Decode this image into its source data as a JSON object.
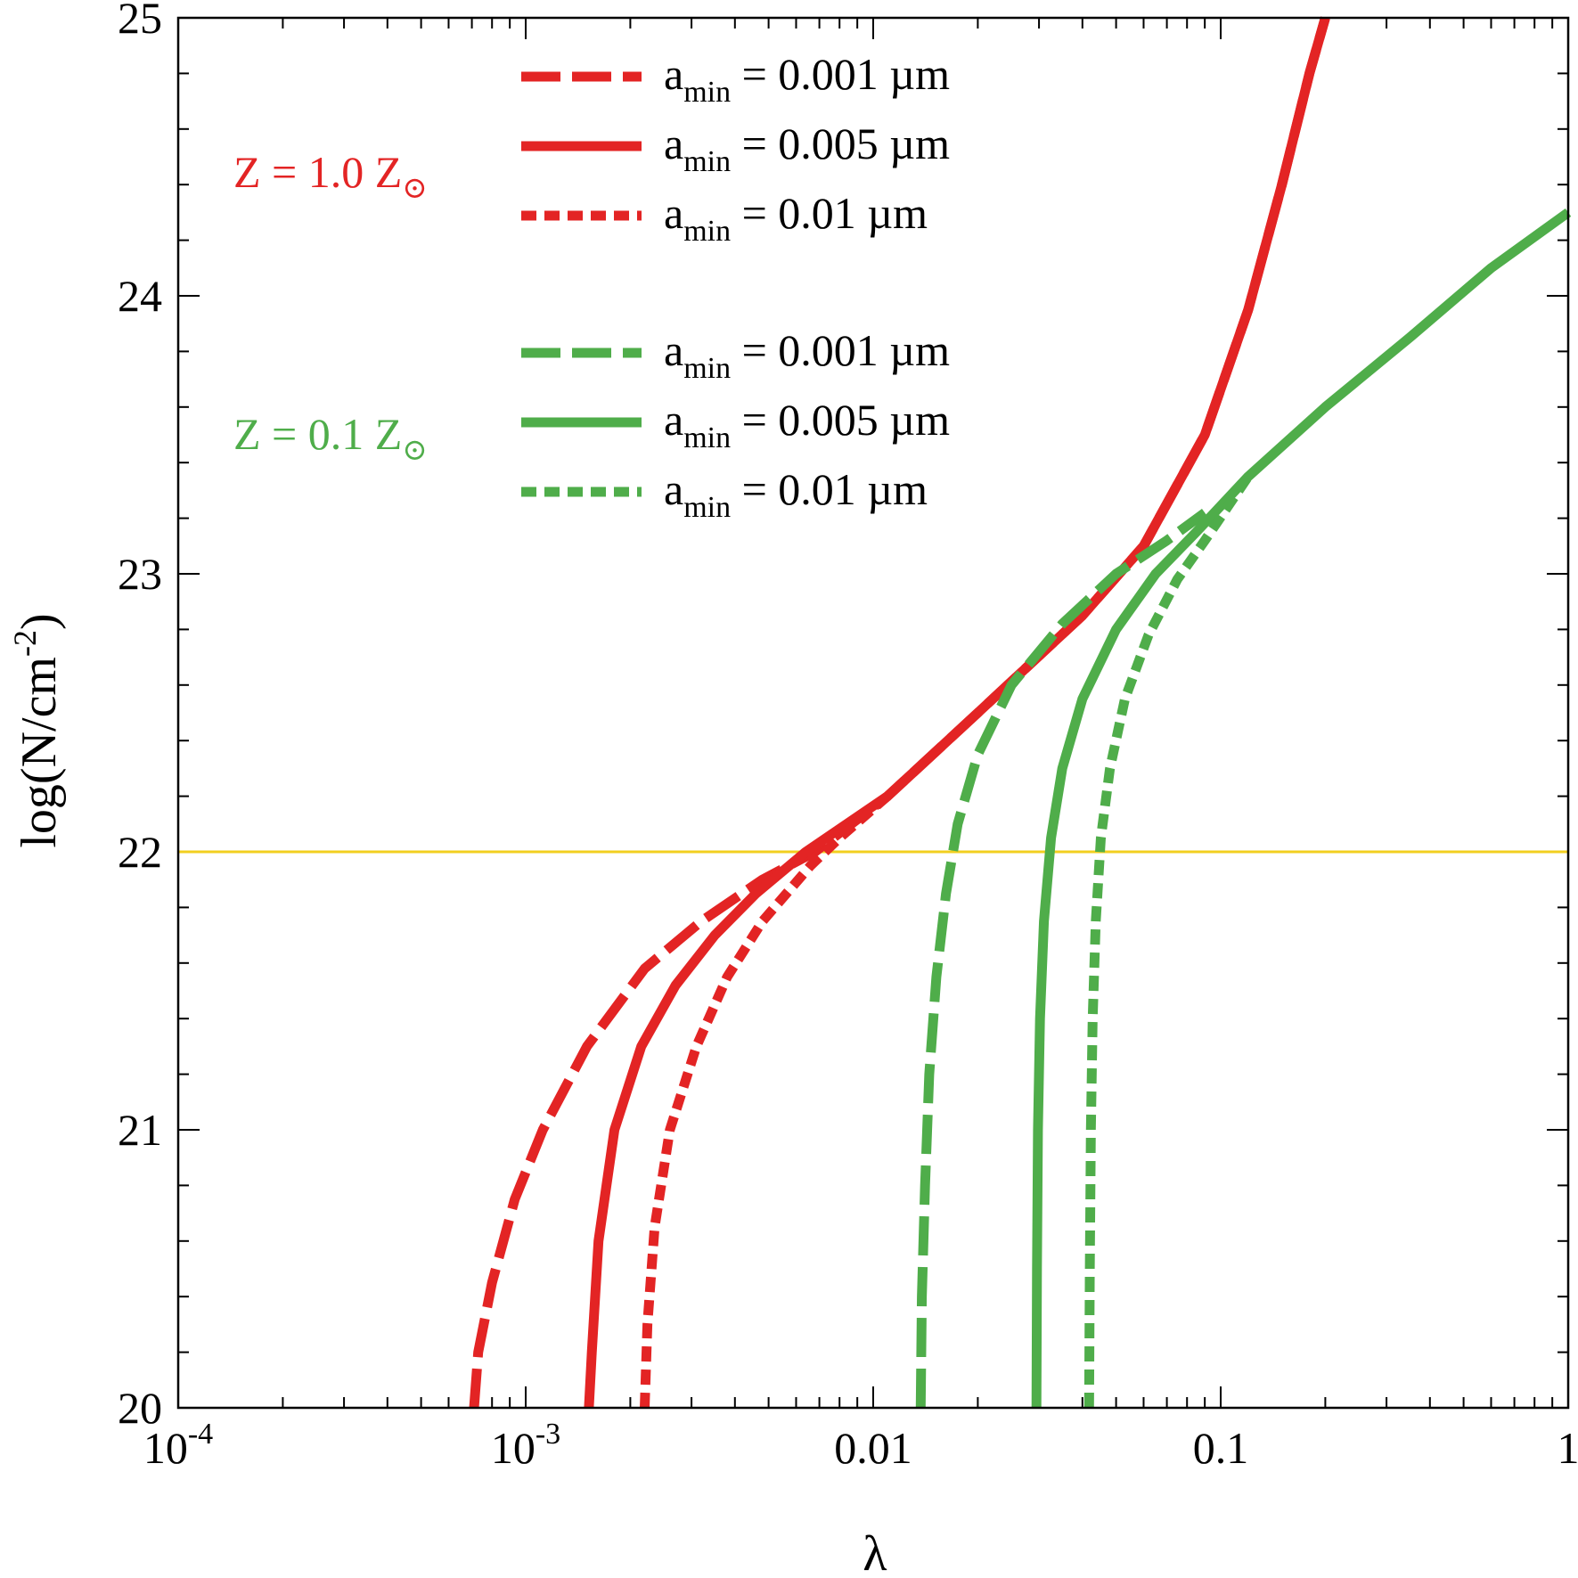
{
  "chart_data": {
    "type": "line",
    "xscale": "log",
    "xlim": [
      0.0001,
      1
    ],
    "ylim": [
      20,
      25
    ],
    "xlabel": "λ",
    "ylabel_parts": {
      "main": "log(N/cm",
      "sup": "-2",
      "close": ")"
    },
    "x_tick_labels": [
      {
        "value": 0.0001,
        "base": "10",
        "exp": "-4"
      },
      {
        "value": 0.001,
        "base": "10",
        "exp": "-3"
      },
      {
        "value": 0.01,
        "text": "0.01"
      },
      {
        "value": 0.1,
        "text": "0.1"
      },
      {
        "value": 1,
        "text": "1"
      }
    ],
    "y_tick_labels": [
      {
        "value": 20,
        "text": "20"
      },
      {
        "value": 21,
        "text": "21"
      },
      {
        "value": 22,
        "text": "22"
      },
      {
        "value": 23,
        "text": "23"
      },
      {
        "value": 24,
        "text": "24"
      },
      {
        "value": 25,
        "text": "25"
      }
    ],
    "reference_line": {
      "y": 22,
      "color": "#f2cf1f"
    },
    "groups": [
      {
        "label": "Z = 1.0 Z",
        "label_sub": "⊙",
        "color": "#e32424"
      },
      {
        "label": "Z = 0.1 Z",
        "label_sub": "⊙",
        "color": "#4fad4a"
      }
    ],
    "series": [
      {
        "legend_label": "a",
        "legend_sub": "min",
        "legend_value": " = 0.001 µm",
        "group": 0,
        "style": "dashed",
        "color": "#e32424",
        "points": [
          [
            0.00071,
            20.0
          ],
          [
            0.00073,
            20.2
          ],
          [
            0.0008,
            20.45
          ],
          [
            0.00093,
            20.75
          ],
          [
            0.00112,
            21.0
          ],
          [
            0.0015,
            21.3
          ],
          [
            0.0022,
            21.58
          ],
          [
            0.0032,
            21.75
          ],
          [
            0.0048,
            21.9
          ],
          [
            0.0068,
            22.0
          ],
          [
            0.011,
            22.2
          ],
          [
            0.02,
            22.5
          ],
          [
            0.04,
            22.85
          ],
          [
            0.06,
            23.1
          ],
          [
            0.09,
            23.5
          ],
          [
            0.12,
            23.95
          ],
          [
            0.15,
            24.4
          ],
          [
            0.18,
            24.8
          ],
          [
            0.2,
            25.0
          ]
        ]
      },
      {
        "legend_label": "a",
        "legend_sub": "min",
        "legend_value": " = 0.005 µm",
        "group": 0,
        "style": "solid",
        "color": "#e32424",
        "points": [
          [
            0.00152,
            20.0
          ],
          [
            0.00155,
            20.2
          ],
          [
            0.00162,
            20.6
          ],
          [
            0.0018,
            21.0
          ],
          [
            0.00215,
            21.3
          ],
          [
            0.0027,
            21.52
          ],
          [
            0.0035,
            21.7
          ],
          [
            0.0046,
            21.85
          ],
          [
            0.0064,
            22.0
          ],
          [
            0.011,
            22.2
          ],
          [
            0.02,
            22.5
          ],
          [
            0.04,
            22.85
          ],
          [
            0.06,
            23.1
          ],
          [
            0.09,
            23.5
          ],
          [
            0.12,
            23.95
          ],
          [
            0.15,
            24.4
          ],
          [
            0.18,
            24.8
          ],
          [
            0.2,
            25.0
          ]
        ]
      },
      {
        "legend_label": "a",
        "legend_sub": "min",
        "legend_value": " = 0.01 µm",
        "group": 0,
        "style": "dotted",
        "color": "#e32424",
        "points": [
          [
            0.0022,
            20.0
          ],
          [
            0.00224,
            20.3
          ],
          [
            0.00235,
            20.65
          ],
          [
            0.0026,
            21.0
          ],
          [
            0.0031,
            21.3
          ],
          [
            0.0038,
            21.55
          ],
          [
            0.0048,
            21.75
          ],
          [
            0.0066,
            21.95
          ],
          [
            0.008,
            22.05
          ],
          [
            0.011,
            22.2
          ]
        ]
      },
      {
        "legend_label": "a",
        "legend_sub": "min",
        "legend_value": " = 0.001 µm",
        "group": 1,
        "style": "dashed",
        "color": "#4fad4a",
        "points": [
          [
            0.0137,
            20.0
          ],
          [
            0.0138,
            20.4
          ],
          [
            0.0141,
            20.8
          ],
          [
            0.0145,
            21.2
          ],
          [
            0.0152,
            21.55
          ],
          [
            0.0162,
            21.85
          ],
          [
            0.0175,
            22.1
          ],
          [
            0.02,
            22.35
          ],
          [
            0.025,
            22.6
          ],
          [
            0.035,
            22.82
          ],
          [
            0.05,
            23.0
          ],
          [
            0.07,
            23.12
          ],
          [
            0.09,
            23.22
          ]
        ]
      },
      {
        "legend_label": "a",
        "legend_sub": "min",
        "legend_value": " = 0.005 µm",
        "group": 1,
        "style": "solid",
        "color": "#4fad4a",
        "points": [
          [
            0.0295,
            20.0
          ],
          [
            0.0296,
            20.5
          ],
          [
            0.0298,
            21.0
          ],
          [
            0.0302,
            21.4
          ],
          [
            0.031,
            21.75
          ],
          [
            0.0325,
            22.05
          ],
          [
            0.035,
            22.3
          ],
          [
            0.04,
            22.55
          ],
          [
            0.05,
            22.8
          ],
          [
            0.065,
            23.0
          ],
          [
            0.085,
            23.15
          ],
          [
            0.12,
            23.35
          ],
          [
            0.2,
            23.6
          ],
          [
            0.35,
            23.85
          ],
          [
            0.6,
            24.1
          ],
          [
            1.0,
            24.3
          ]
        ]
      },
      {
        "legend_label": "a",
        "legend_sub": "min",
        "legend_value": " = 0.01 µm",
        "group": 1,
        "style": "dotted",
        "color": "#4fad4a",
        "points": [
          [
            0.0418,
            20.0
          ],
          [
            0.042,
            20.5
          ],
          [
            0.0423,
            21.0
          ],
          [
            0.0428,
            21.4
          ],
          [
            0.0437,
            21.75
          ],
          [
            0.0452,
            22.05
          ],
          [
            0.048,
            22.3
          ],
          [
            0.053,
            22.55
          ],
          [
            0.062,
            22.78
          ],
          [
            0.075,
            22.98
          ],
          [
            0.09,
            23.12
          ],
          [
            0.12,
            23.35
          ]
        ]
      }
    ]
  }
}
